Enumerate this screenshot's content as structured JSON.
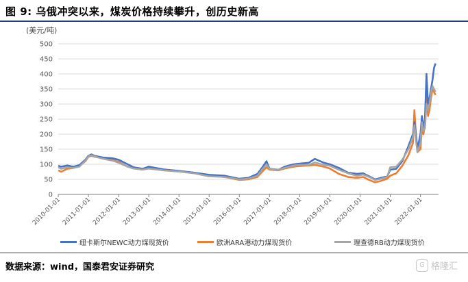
{
  "figure_title": "图 9: 乌俄冲突以来，煤炭价格持续攀升，创历史新高",
  "source_text": "数据来源：wind，国泰君安证券研究",
  "watermark_text": "格隆汇",
  "colors": {
    "rule": "#1f3f7a",
    "grid": "#d9d9d9"
  },
  "chart_data": {
    "type": "line",
    "title": "",
    "xlabel": "",
    "ylabel": "(美元/吨)",
    "ylim": [
      0,
      500
    ],
    "yticks": [
      0,
      50,
      100,
      150,
      200,
      250,
      300,
      350,
      400,
      450,
      500
    ],
    "xlim": [
      2010.0,
      2022.6
    ],
    "xtick_labels": [
      "2010-01-01",
      "2011-01-01",
      "2012-01-01",
      "2013-01-01",
      "2014-01-01",
      "2015-01-01",
      "2016-01-01",
      "2017-01-01",
      "2018-01-01",
      "2019-01-01",
      "2020-01-01",
      "2021-01-01",
      "2022-01-01"
    ],
    "grid": "horizontal",
    "legend_position": "bottom",
    "series": [
      {
        "name": "纽卡斯尔NEWC动力煤现货价",
        "color": "#4472c4",
        "x": [
          2010.0,
          2010.1,
          2010.3,
          2010.5,
          2010.7,
          2010.9,
          2011.0,
          2011.1,
          2011.2,
          2011.5,
          2011.8,
          2012.0,
          2012.3,
          2012.5,
          2012.8,
          2013.0,
          2013.5,
          2014.0,
          2014.5,
          2015.0,
          2015.5,
          2016.0,
          2016.3,
          2016.6,
          2016.8,
          2016.9,
          2017.0,
          2017.3,
          2017.5,
          2017.8,
          2018.0,
          2018.3,
          2018.5,
          2018.8,
          2019.0,
          2019.3,
          2019.6,
          2019.9,
          2020.1,
          2020.3,
          2020.5,
          2020.7,
          2020.9,
          2021.0,
          2021.2,
          2021.4,
          2021.6,
          2021.75,
          2021.8,
          2021.85,
          2021.9,
          2022.0,
          2022.05,
          2022.1,
          2022.15,
          2022.2,
          2022.25,
          2022.3,
          2022.35,
          2022.4,
          2022.45,
          2022.5
        ],
        "y": [
          95,
          92,
          96,
          92,
          97,
          115,
          128,
          133,
          128,
          122,
          120,
          115,
          100,
          90,
          85,
          92,
          83,
          78,
          72,
          65,
          62,
          52,
          55,
          68,
          95,
          110,
          85,
          82,
          92,
          100,
          102,
          105,
          118,
          105,
          100,
          88,
          72,
          68,
          70,
          60,
          50,
          55,
          60,
          82,
          85,
          110,
          160,
          200,
          240,
          200,
          150,
          200,
          260,
          220,
          250,
          400,
          300,
          320,
          350,
          380,
          420,
          435
        ]
      },
      {
        "name": "欧洲ARA港动力煤现货价",
        "color": "#ed7d31",
        "x": [
          2010.0,
          2010.1,
          2010.3,
          2010.5,
          2010.7,
          2010.9,
          2011.0,
          2011.1,
          2011.2,
          2011.5,
          2011.8,
          2012.0,
          2012.3,
          2012.5,
          2012.8,
          2013.0,
          2013.5,
          2014.0,
          2014.5,
          2015.0,
          2015.5,
          2016.0,
          2016.3,
          2016.6,
          2016.8,
          2016.9,
          2017.0,
          2017.3,
          2017.5,
          2017.8,
          2018.0,
          2018.3,
          2018.5,
          2018.8,
          2019.0,
          2019.3,
          2019.6,
          2019.9,
          2020.1,
          2020.3,
          2020.5,
          2020.7,
          2020.9,
          2021.0,
          2021.2,
          2021.4,
          2021.6,
          2021.75,
          2021.8,
          2021.85,
          2021.9,
          2022.0,
          2022.05,
          2022.1,
          2022.15,
          2022.2,
          2022.25,
          2022.3,
          2022.35,
          2022.4,
          2022.45,
          2022.5
        ],
        "y": [
          80,
          75,
          85,
          88,
          94,
          110,
          125,
          128,
          125,
          120,
          115,
          108,
          92,
          88,
          84,
          86,
          80,
          76,
          72,
          62,
          58,
          48,
          50,
          58,
          80,
          90,
          82,
          80,
          86,
          92,
          94,
          96,
          98,
          92,
          86,
          68,
          58,
          55,
          58,
          48,
          40,
          45,
          52,
          62,
          70,
          95,
          130,
          170,
          280,
          200,
          140,
          150,
          220,
          200,
          230,
          360,
          260,
          280,
          320,
          350,
          340,
          330
        ]
      },
      {
        "name": "理查德RB动力煤现货价",
        "color": "#a5a5a5",
        "x": [
          2010.0,
          2010.1,
          2010.3,
          2010.5,
          2010.7,
          2010.9,
          2011.0,
          2011.1,
          2011.2,
          2011.5,
          2011.8,
          2012.0,
          2012.3,
          2012.5,
          2012.8,
          2013.0,
          2013.5,
          2014.0,
          2014.5,
          2015.0,
          2015.5,
          2016.0,
          2016.3,
          2016.6,
          2016.8,
          2016.9,
          2017.0,
          2017.3,
          2017.5,
          2017.8,
          2018.0,
          2018.3,
          2018.5,
          2018.8,
          2019.0,
          2019.3,
          2019.6,
          2019.9,
          2020.1,
          2020.3,
          2020.5,
          2020.7,
          2020.9,
          2021.0,
          2021.2,
          2021.4,
          2021.6,
          2021.75,
          2021.8,
          2021.85,
          2021.9,
          2022.0,
          2022.05,
          2022.1,
          2022.15,
          2022.2,
          2022.25,
          2022.3,
          2022.35,
          2022.4,
          2022.45,
          2022.5
        ],
        "y": [
          90,
          85,
          90,
          88,
          92,
          112,
          126,
          130,
          126,
          118,
          112,
          105,
          92,
          86,
          82,
          86,
          80,
          76,
          70,
          60,
          58,
          50,
          52,
          62,
          88,
          100,
          84,
          82,
          88,
          96,
          98,
          98,
          106,
          98,
          95,
          82,
          70,
          62,
          66,
          58,
          48,
          52,
          58,
          90,
          92,
          115,
          150,
          190,
          230,
          180,
          140,
          170,
          240,
          210,
          220,
          300,
          280,
          300,
          340,
          360,
          350,
          340
        ]
      }
    ]
  }
}
